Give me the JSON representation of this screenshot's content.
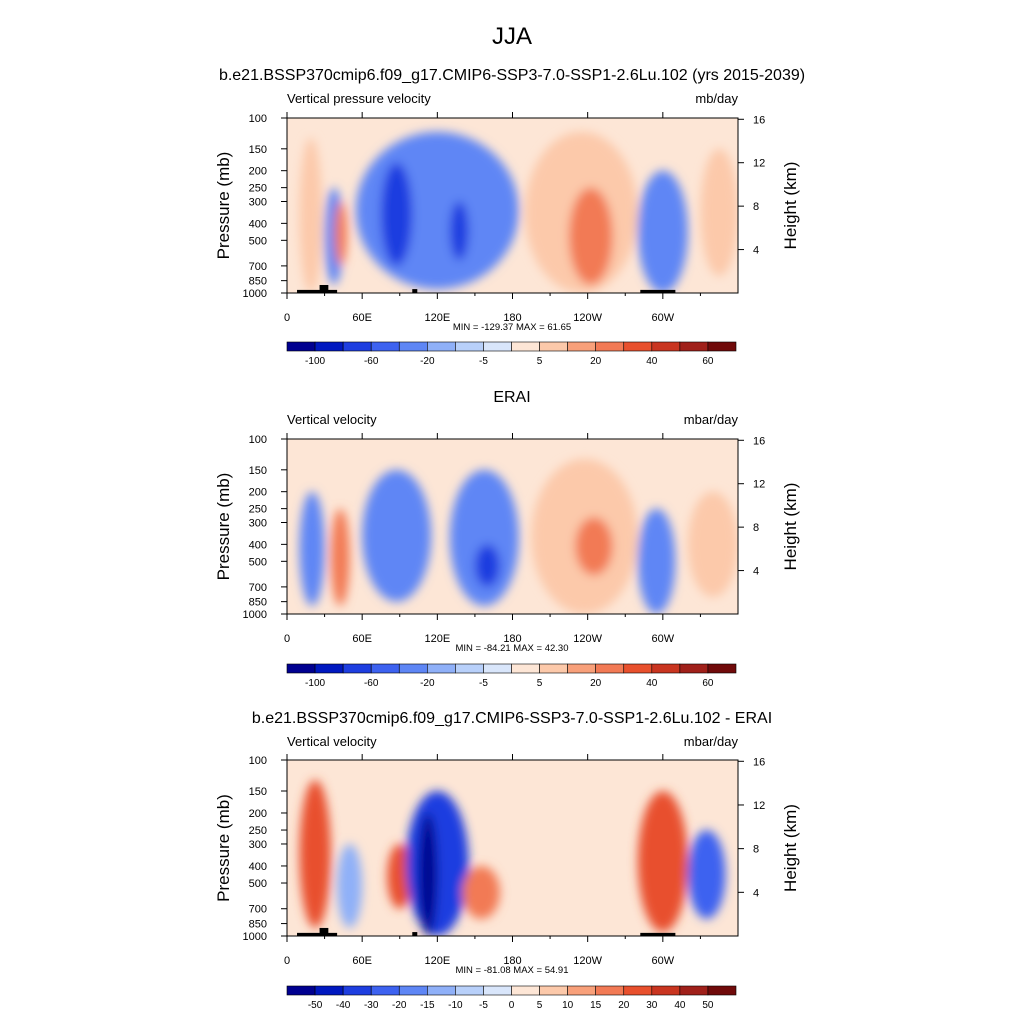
{
  "figure": {
    "title": "JJA"
  },
  "palettes": {
    "main": [
      "#000090",
      "#0018c0",
      "#1e3ee0",
      "#3d62f0",
      "#5e86f5",
      "#8fb0f8",
      "#b8d0fa",
      "#d9e6fb",
      "#fde6d6",
      "#fcc9aa",
      "#f8a07a",
      "#f27a55",
      "#e8502d",
      "#c93520",
      "#a0201a",
      "#700a0a"
    ],
    "diff": [
      "#000090",
      "#0018c0",
      "#1e3ee0",
      "#3d62f0",
      "#5e86f5",
      "#8fb0f8",
      "#b8d0fa",
      "#d9e6fb",
      "#fde6d6",
      "#fcc9aa",
      "#f8a07a",
      "#f27a55",
      "#e8502d",
      "#c93520",
      "#a0201a",
      "#700a0a"
    ]
  },
  "panels": [
    {
      "subtitle": "b.e21.BSSP370cmip6.f09_g17.CMIP6-SSP3-7.0-SSP1-2.6Lu.102 (yrs 2015-2039)",
      "left_label": "Vertical pressure velocity",
      "right_label": "mb/day",
      "y_label": "Pressure (mb)",
      "y2_label": "Height (km)",
      "minmax": "MIN = -129.37  MAX =  61.65",
      "colorbar_labels": [
        "-100",
        "-60",
        "-20",
        "-5",
        "5",
        "20",
        "40",
        "60"
      ],
      "palette": "main",
      "topography": true
    },
    {
      "subtitle": "ERAI",
      "left_label": "Vertical velocity",
      "right_label": "mbar/day",
      "y_label": "Pressure (mb)",
      "y2_label": "Height (km)",
      "minmax": "MIN = -84.21  MAX = 42.30",
      "colorbar_labels": [
        "-100",
        "-60",
        "-20",
        "-5",
        "5",
        "20",
        "40",
        "60"
      ],
      "palette": "main",
      "topography": false
    },
    {
      "subtitle": "b.e21.BSSP370cmip6.f09_g17.CMIP6-SSP3-7.0-SSP1-2.6Lu.102 - ERAI",
      "left_label": "Vertical velocity",
      "right_label": "mbar/day",
      "y_label": "Pressure (mb)",
      "y2_label": "Height (km)",
      "minmax": "MIN = -81.08  MAX = 54.91",
      "colorbar_labels": [
        "-50",
        "-40",
        "-30",
        "-20",
        "-15",
        "-10",
        "-5",
        "0",
        "5",
        "10",
        "15",
        "20",
        "30",
        "40",
        "50"
      ],
      "palette": "diff",
      "topography": true
    }
  ],
  "chart_data": [
    {
      "type": "heatmap",
      "title": "b.e21.BSSP370cmip6.f09_g17.CMIP6-SSP3-7.0-SSP1-2.6Lu.102 (yrs 2015-2039)",
      "xlabel": "",
      "ylabel": "Pressure (mb)",
      "y2label": "Height (km)",
      "x_ticks": [
        "0",
        "60E",
        "120E",
        "180",
        "120W",
        "60W"
      ],
      "x_tick_lon": [
        0,
        60,
        120,
        180,
        240,
        300
      ],
      "xlim": [
        0,
        360
      ],
      "y_ticks": [
        100,
        150,
        200,
        250,
        300,
        400,
        500,
        700,
        850,
        1000
      ],
      "y2_ticks": [
        16,
        12,
        8,
        4
      ],
      "ylim": [
        1000,
        100
      ],
      "levels": [
        -100,
        -60,
        -20,
        -5,
        5,
        20,
        40,
        60
      ],
      "min": -129.37,
      "max": 61.65,
      "units": "mb/day",
      "features": [
        {
          "lon": [
            10,
            28
          ],
          "p": [
            130,
            1000
          ],
          "value": 15
        },
        {
          "lon": [
            30,
            45
          ],
          "p": [
            250,
            900
          ],
          "value": -30
        },
        {
          "lon": [
            38,
            48
          ],
          "p": [
            300,
            700
          ],
          "value": 25
        },
        {
          "lon": [
            55,
            185
          ],
          "p": [
            120,
            950
          ],
          "value": -30
        },
        {
          "lon": [
            75,
            100
          ],
          "p": [
            180,
            700
          ],
          "value": -70
        },
        {
          "lon": [
            130,
            145
          ],
          "p": [
            300,
            650
          ],
          "value": -80
        },
        {
          "lon": [
            190,
            280
          ],
          "p": [
            120,
            1000
          ],
          "value": 15
        },
        {
          "lon": [
            225,
            260
          ],
          "p": [
            250,
            900
          ],
          "value": 30
        },
        {
          "lon": [
            280,
            320
          ],
          "p": [
            200,
            1000
          ],
          "value": -40
        },
        {
          "lon": [
            330,
            360
          ],
          "p": [
            150,
            800
          ],
          "value": 20
        }
      ]
    },
    {
      "type": "heatmap",
      "title": "ERAI",
      "xlabel": "",
      "ylabel": "Pressure (mb)",
      "y2label": "Height (km)",
      "x_ticks": [
        "0",
        "60E",
        "120E",
        "180",
        "120W",
        "60W"
      ],
      "x_tick_lon": [
        0,
        60,
        120,
        180,
        240,
        300
      ],
      "xlim": [
        0,
        360
      ],
      "y_ticks": [
        100,
        150,
        200,
        250,
        300,
        400,
        500,
        700,
        850,
        1000
      ],
      "y2_ticks": [
        16,
        12,
        8,
        4
      ],
      "ylim": [
        1000,
        100
      ],
      "levels": [
        -100,
        -60,
        -20,
        -5,
        5,
        20,
        40,
        60
      ],
      "min": -84.21,
      "max": 42.3,
      "units": "mbar/day",
      "features": [
        {
          "lon": [
            10,
            30
          ],
          "p": [
            200,
            900
          ],
          "value": -30
        },
        {
          "lon": [
            35,
            50
          ],
          "p": [
            250,
            900
          ],
          "value": 25
        },
        {
          "lon": [
            60,
            115
          ],
          "p": [
            150,
            850
          ],
          "value": -30
        },
        {
          "lon": [
            130,
            185
          ],
          "p": [
            150,
            900
          ],
          "value": -35
        },
        {
          "lon": [
            150,
            170
          ],
          "p": [
            400,
            700
          ],
          "value": -70
        },
        {
          "lon": [
            195,
            280
          ],
          "p": [
            130,
            1000
          ],
          "value": 15
        },
        {
          "lon": [
            230,
            260
          ],
          "p": [
            280,
            600
          ],
          "value": 25
        },
        {
          "lon": [
            280,
            310
          ],
          "p": [
            250,
            1000
          ],
          "value": -40
        },
        {
          "lon": [
            320,
            360
          ],
          "p": [
            200,
            800
          ],
          "value": 15
        }
      ]
    },
    {
      "type": "heatmap",
      "title": "b.e21.BSSP370cmip6.f09_g17.CMIP6-SSP3-7.0-SSP1-2.6Lu.102 - ERAI",
      "xlabel": "",
      "ylabel": "Pressure (mb)",
      "y2label": "Height (km)",
      "x_ticks": [
        "0",
        "60E",
        "120E",
        "180",
        "120W",
        "60W"
      ],
      "x_tick_lon": [
        0,
        60,
        120,
        180,
        240,
        300
      ],
      "xlim": [
        0,
        360
      ],
      "y_ticks": [
        100,
        150,
        200,
        250,
        300,
        400,
        500,
        700,
        850,
        1000
      ],
      "y2_ticks": [
        16,
        12,
        8,
        4
      ],
      "ylim": [
        1000,
        100
      ],
      "levels": [
        -50,
        -40,
        -30,
        -20,
        -15,
        -10,
        -5,
        0,
        5,
        10,
        15,
        20,
        30,
        40,
        50
      ],
      "min": -81.08,
      "max": 54.91,
      "units": "mbar/day",
      "features": [
        {
          "lon": [
            10,
            35
          ],
          "p": [
            130,
            900
          ],
          "value": 30
        },
        {
          "lon": [
            40,
            60
          ],
          "p": [
            300,
            900
          ],
          "value": -10
        },
        {
          "lon": [
            80,
            100
          ],
          "p": [
            300,
            700
          ],
          "value": 25
        },
        {
          "lon": [
            95,
            145
          ],
          "p": [
            150,
            1000
          ],
          "value": -30
        },
        {
          "lon": [
            105,
            120
          ],
          "p": [
            200,
            1000
          ],
          "value": -50
        },
        {
          "lon": [
            140,
            170
          ],
          "p": [
            400,
            800
          ],
          "value": 20
        },
        {
          "lon": [
            280,
            320
          ],
          "p": [
            150,
            950
          ],
          "value": 30
        },
        {
          "lon": [
            320,
            350
          ],
          "p": [
            250,
            800
          ],
          "value": -25
        }
      ]
    }
  ]
}
